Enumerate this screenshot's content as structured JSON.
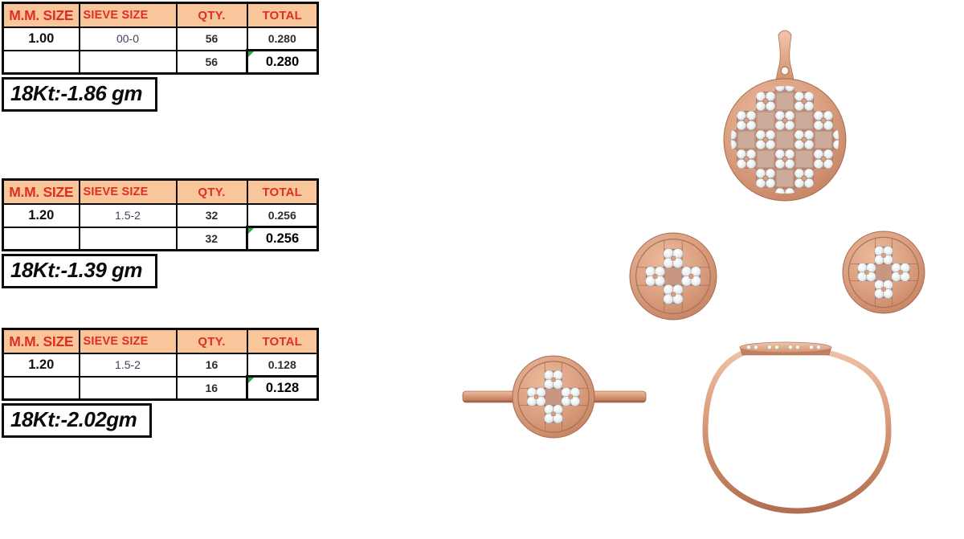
{
  "tables": [
    {
      "headers": [
        "M.M. SIZE",
        "SIEVE SIZE",
        "QTY.",
        "TOTAL"
      ],
      "rows": [
        [
          "1.00",
          "00-0",
          "56",
          "0.280"
        ],
        [
          "",
          "",
          "56",
          "0.280"
        ]
      ],
      "weight_label": "18Kt:-1.86 gm"
    },
    {
      "headers": [
        "M.M. SIZE",
        "SIEVE SIZE",
        "QTY.",
        "TOTAL"
      ],
      "rows": [
        [
          "1.20",
          "1.5-2",
          "32",
          "0.256"
        ],
        [
          "",
          "",
          "32",
          "0.256"
        ]
      ],
      "weight_label": "18Kt:-1.39 gm"
    },
    {
      "headers": [
        "M.M. SIZE",
        "SIEVE SIZE",
        "QTY.",
        "TOTAL"
      ],
      "rows": [
        [
          "1.20",
          "1.5-2",
          "16",
          "0.128"
        ],
        [
          "",
          "",
          "16",
          "0.128"
        ]
      ],
      "weight_label": "18Kt:-2.02gm"
    }
  ],
  "jewelry": {
    "items": [
      "pendant",
      "stud-earring-left",
      "stud-earring-right",
      "ring-front-view",
      "ring-side-view"
    ],
    "style": "rose-gold discs with checkerboard / cross pattern of 4-stone diamond clusters"
  },
  "css_vars": {
    "header_bg": "#F9C69B",
    "header_red": "#E02F1F",
    "sieve_ink": "#463D5A",
    "value_ink": "#2F2C2C",
    "border_ink": "#0A0A0A",
    "flag_green": "#2FA24B",
    "matteL": "#CDAB9B",
    "matteD": "#C28F7A",
    "matteC": "#C89781",
    "groove": "#A97055",
    "rose": "#D79B7E"
  }
}
